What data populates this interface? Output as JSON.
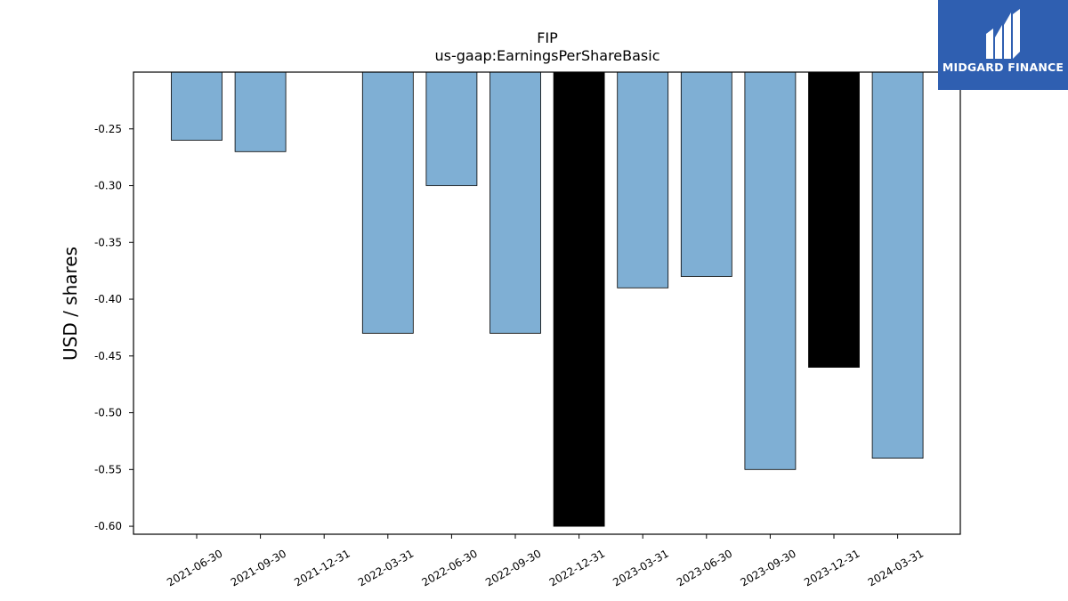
{
  "brand": {
    "name": "MIDGARD FINANCE",
    "color": "#2f5fb1"
  },
  "chart_data": {
    "type": "bar",
    "title": "FIP",
    "subtitle": "us-gaap:EarningsPerShareBasic",
    "xlabel": "",
    "ylabel": "USD / shares",
    "categories": [
      "2021-06-30",
      "2021-09-30",
      "2021-12-31",
      "2022-03-31",
      "2022-06-30",
      "2022-09-30",
      "2022-12-31",
      "2023-03-31",
      "2023-06-30",
      "2023-09-30",
      "2023-12-31",
      "2024-03-31"
    ],
    "values": [
      -0.26,
      -0.27,
      null,
      -0.43,
      -0.3,
      -0.43,
      -0.6,
      -0.39,
      -0.38,
      -0.55,
      -0.46,
      -0.54
    ],
    "bar_colors": [
      "#7fafd4",
      "#7fafd4",
      "#7fafd4",
      "#7fafd4",
      "#7fafd4",
      "#7fafd4",
      "#000000",
      "#7fafd4",
      "#7fafd4",
      "#7fafd4",
      "#000000",
      "#7fafd4"
    ],
    "ylim": [
      -0.607,
      -0.2
    ],
    "yticks": [
      -0.25,
      -0.3,
      -0.35,
      -0.4,
      -0.45,
      -0.5,
      -0.55,
      -0.6
    ],
    "ytick_labels": [
      "-0.25",
      "-0.30",
      "-0.35",
      "-0.40",
      "-0.45",
      "-0.50",
      "-0.55",
      "-0.60"
    ],
    "grid": false,
    "legend": "none"
  }
}
